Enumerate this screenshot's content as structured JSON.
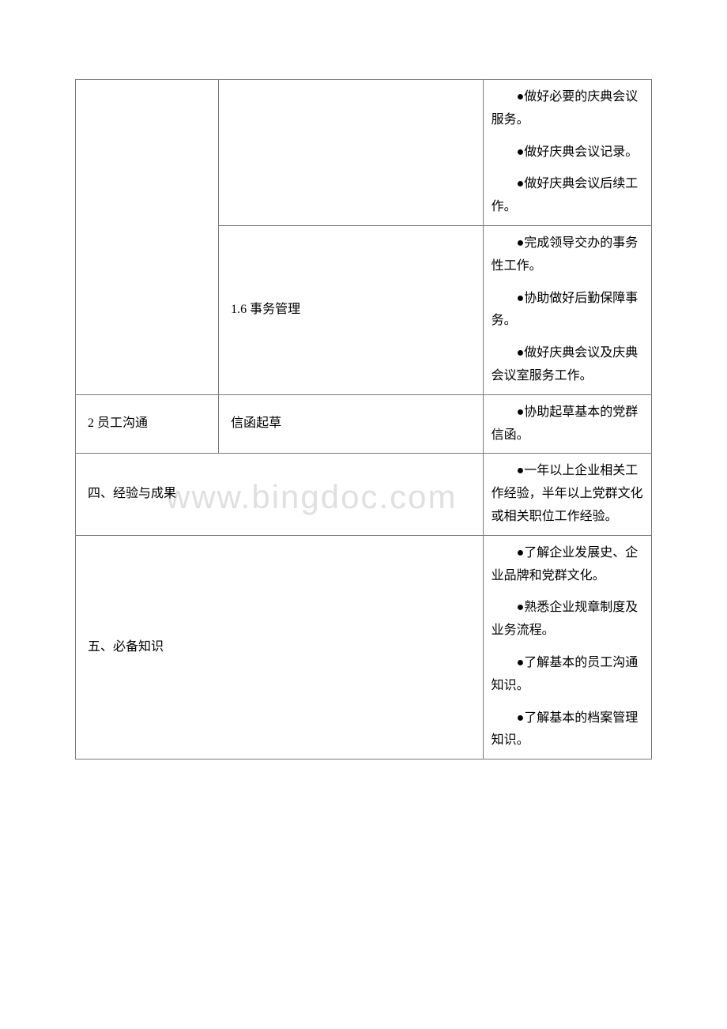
{
  "watermark": "www.bingdoc.com",
  "colors": {
    "border": "#7a7a7a",
    "text": "#000000",
    "background": "#ffffff",
    "watermark": "#e0e0e0"
  },
  "rows": {
    "r1": {
      "col3_p1": "●做好必要的庆典会议服务。",
      "col3_p2": "●做好庆典会议记录。",
      "col3_p3": "●做好庆典会议后续工作。"
    },
    "r2": {
      "col2": "1.6 事务管理",
      "col3_p1": "●完成领导交办的事务性工作。",
      "col3_p2": "●协助做好后勤保障事务。",
      "col3_p3": "●做好庆典会议及庆典会议室服务工作。"
    },
    "r3": {
      "col1": "2 员工沟通",
      "col2": "信函起草",
      "col3_p1": "●协助起草基本的党群信函。"
    },
    "r4": {
      "col1": "四、经验与成果",
      "col3_p1": "●一年以上企业相关工作经验，半年以上党群文化或相关职位工作经验。"
    },
    "r5": {
      "col1": "五、必备知识",
      "col3_p1": "●了解企业发展史、企业品牌和党群文化。",
      "col3_p2": "●熟悉企业规章制度及业务流程。",
      "col3_p3": "●了解基本的员工沟通知识。",
      "col3_p4": "●了解基本的档案管理知识。"
    }
  }
}
